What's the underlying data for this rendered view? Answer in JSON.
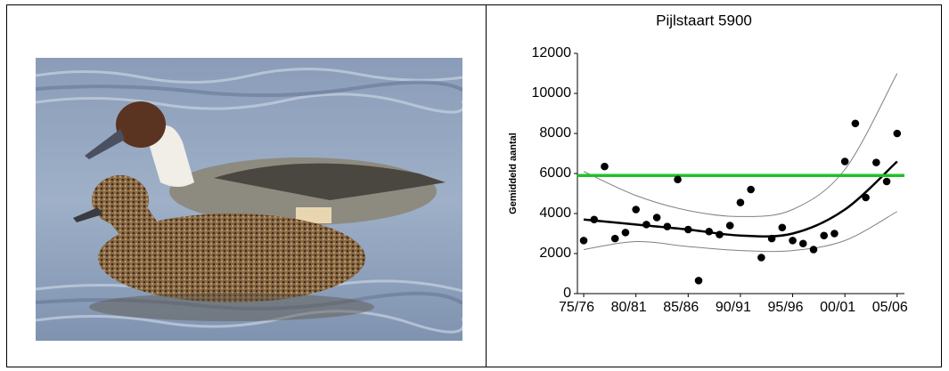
{
  "chart_data": {
    "type": "scatter",
    "title": "Pijlstaart 5900",
    "y_label": "Gemiddeld aantal",
    "xlim": [
      1974.4,
      2005.7
    ],
    "xticks": [
      {
        "value": 1975,
        "label": "75/76"
      },
      {
        "value": 1980,
        "label": "80/81"
      },
      {
        "value": 1985,
        "label": "85/86"
      },
      {
        "value": 1990,
        "label": "90/91"
      },
      {
        "value": 1995,
        "label": "95/96"
      },
      {
        "value": 2000,
        "label": "00/01"
      },
      {
        "value": 2005,
        "label": "05/06"
      }
    ],
    "ylim": [
      0,
      12000
    ],
    "yticks": [
      0,
      2000,
      4000,
      6000,
      8000,
      10000,
      12000
    ],
    "series": [
      {
        "type": "scatter",
        "color": "#000000",
        "x": [
          1975,
          1976,
          1977,
          1978,
          1979,
          1980,
          1981,
          1982,
          1983,
          1984,
          1985,
          1986,
          1987,
          1988,
          1989,
          1990,
          1991,
          1992,
          1993,
          1994,
          1995,
          1996,
          1997,
          1998,
          1999,
          2000,
          2001,
          2002,
          2003,
          2004,
          2005
        ],
        "values": [
          2650,
          3700,
          6350,
          2750,
          3050,
          4200,
          3450,
          3800,
          3350,
          5700,
          3200,
          650,
          3100,
          2950,
          3400,
          4550,
          5200,
          1800,
          2750,
          3300,
          2650,
          2500,
          2200,
          2900,
          3000,
          6600,
          8500,
          4800,
          6550,
          5600,
          8000
        ]
      },
      {
        "type": "line",
        "color": "#808080",
        "linewidth": 1,
        "x": [
          1975,
          1980,
          1985,
          1990,
          1995,
          2000,
          2005
        ],
        "values": [
          6100,
          4900,
          4150,
          3850,
          4200,
          6200,
          11000
        ]
      },
      {
        "type": "line",
        "color": "#000000",
        "linewidth": 2.5,
        "x": [
          1975,
          1980,
          1985,
          1990,
          1995,
          2000,
          2005
        ],
        "values": [
          3700,
          3450,
          3200,
          2900,
          3000,
          4200,
          6600
        ]
      },
      {
        "type": "line",
        "color": "#808080",
        "linewidth": 1,
        "x": [
          1975,
          1980,
          1985,
          1990,
          1995,
          2000,
          2005
        ],
        "values": [
          2200,
          2600,
          2350,
          2150,
          2150,
          2650,
          4100
        ]
      }
    ],
    "hline": {
      "value": 5900,
      "color": "#22c02a"
    }
  }
}
